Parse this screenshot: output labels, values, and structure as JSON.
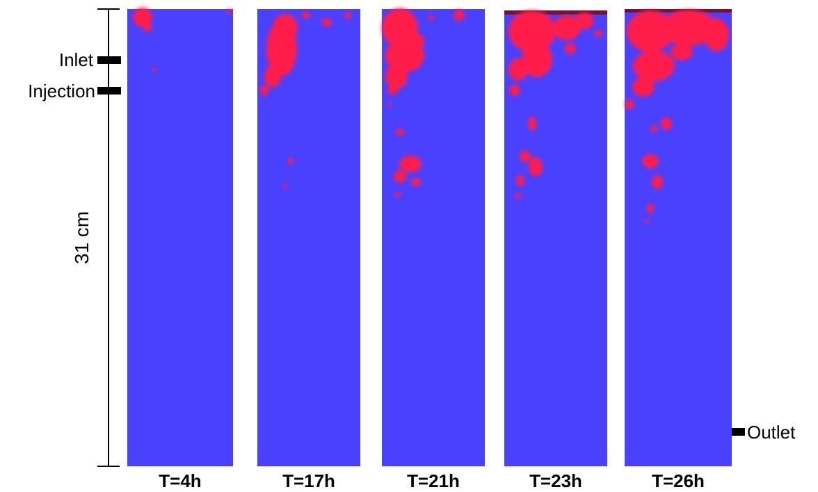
{
  "colors": {
    "background_blue": "#4a41ff",
    "deposit_red": "#ff1a4a",
    "deposit_dark": "#7a1030"
  },
  "scale_label": "31 cm",
  "port_labels": {
    "inlet": "Inlet",
    "injection": "Injection",
    "outlet": "Outlet"
  },
  "panels": [
    {
      "time_label": "T=4h"
    },
    {
      "time_label": "T=17h"
    },
    {
      "time_label": "T=21h"
    },
    {
      "time_label": "T=23h"
    },
    {
      "time_label": "T=26h"
    }
  ]
}
